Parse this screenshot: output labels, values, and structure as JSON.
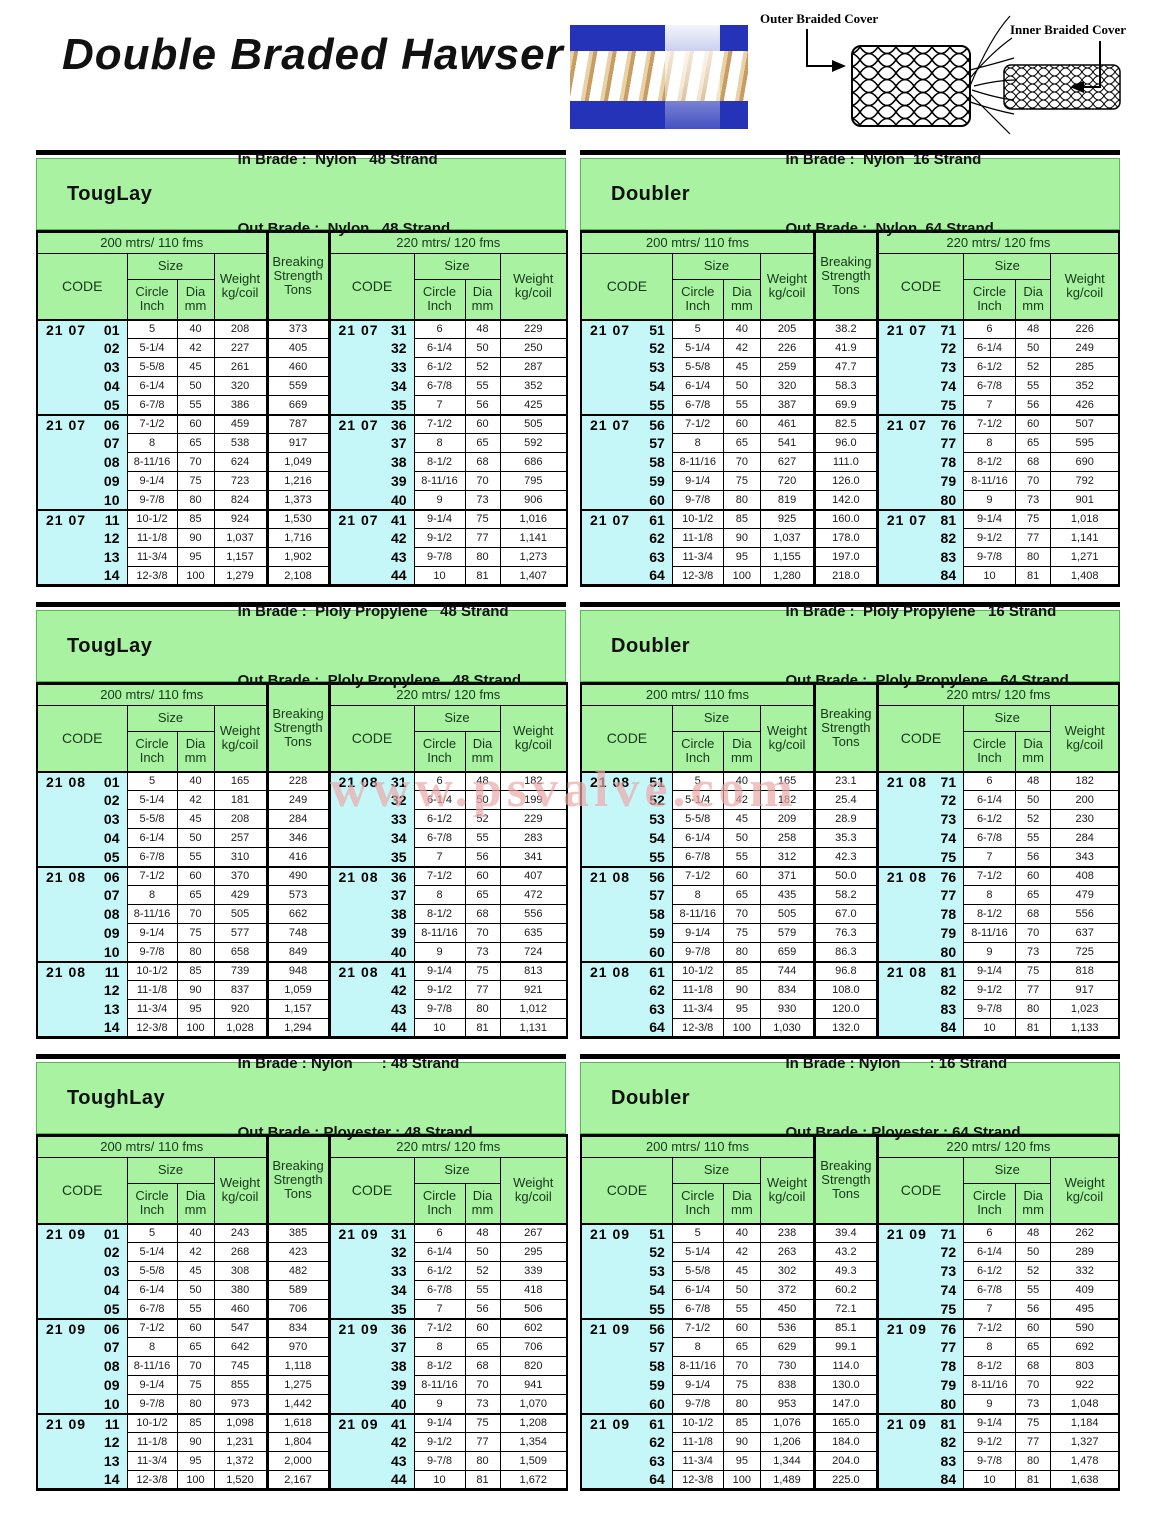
{
  "page": {
    "title": "Double Braded Hawser",
    "watermark": "www.psvalve.com",
    "outer_label": "Outer Braided Cover",
    "inner_label": "Inner Braided Cover"
  },
  "columns": {
    "len200": "200 mtrs/ 110 fms",
    "len220": "220 mtrs/ 120 fms",
    "code": "CODE",
    "size": "Size",
    "circle": "Circle\nInch",
    "dia": "Dia\nmm",
    "weight": "Weight\nkg/coil",
    "breaking": "Breaking\nStrength\nTons"
  },
  "tables": [
    {
      "product": "TougLay",
      "in_brade": "In Brade :  Nylon   48 Strand",
      "out_brade": "Out Brade :  Nylon   48 Strand",
      "rows": [
        [
          "21 07 01",
          "5",
          "40",
          "208",
          "373",
          "21 07 31",
          "6",
          "48",
          "229"
        ],
        [
          "02",
          "5-1/4",
          "42",
          "227",
          "405",
          "32",
          "6-1/4",
          "50",
          "250"
        ],
        [
          "03",
          "5-5/8",
          "45",
          "261",
          "460",
          "33",
          "6-1/2",
          "52",
          "287"
        ],
        [
          "04",
          "6-1/4",
          "50",
          "320",
          "559",
          "34",
          "6-7/8",
          "55",
          "352"
        ],
        [
          "05",
          "6-7/8",
          "55",
          "386",
          "669",
          "35",
          "7",
          "56",
          "425"
        ],
        [
          "21 07 06",
          "7-1/2",
          "60",
          "459",
          "787",
          "21 07 36",
          "7-1/2",
          "60",
          "505"
        ],
        [
          "07",
          "8",
          "65",
          "538",
          "917",
          "37",
          "8",
          "65",
          "592"
        ],
        [
          "08",
          "8-11/16",
          "70",
          "624",
          "1,049",
          "38",
          "8-1/2",
          "68",
          "686"
        ],
        [
          "09",
          "9-1/4",
          "75",
          "723",
          "1,216",
          "39",
          "8-11/16",
          "70",
          "795"
        ],
        [
          "10",
          "9-7/8",
          "80",
          "824",
          "1,373",
          "40",
          "9",
          "73",
          "906"
        ],
        [
          "21 07 11",
          "10-1/2",
          "85",
          "924",
          "1,530",
          "21 07 41",
          "9-1/4",
          "75",
          "1,016"
        ],
        [
          "12",
          "11-1/8",
          "90",
          "1,037",
          "1,716",
          "42",
          "9-1/2",
          "77",
          "1,141"
        ],
        [
          "13",
          "11-3/4",
          "95",
          "1,157",
          "1,902",
          "43",
          "9-7/8",
          "80",
          "1,273"
        ],
        [
          "14",
          "12-3/8",
          "100",
          "1,279",
          "2,108",
          "44",
          "10",
          "81",
          "1,407"
        ]
      ]
    },
    {
      "product": "Doubler",
      "in_brade": "In Brade :  Nylon  16 Strand",
      "out_brade": "Out Brade :  Nylon  64 Strand",
      "rows": [
        [
          "21 07 51",
          "5",
          "40",
          "205",
          "38.2",
          "21 07 71",
          "6",
          "48",
          "226"
        ],
        [
          "52",
          "5-1/4",
          "42",
          "226",
          "41.9",
          "72",
          "6-1/4",
          "50",
          "249"
        ],
        [
          "53",
          "5-5/8",
          "45",
          "259",
          "47.7",
          "73",
          "6-1/2",
          "52",
          "285"
        ],
        [
          "54",
          "6-1/4",
          "50",
          "320",
          "58.3",
          "74",
          "6-7/8",
          "55",
          "352"
        ],
        [
          "55",
          "6-7/8",
          "55",
          "387",
          "69.9",
          "75",
          "7",
          "56",
          "426"
        ],
        [
          "21 07 56",
          "7-1/2",
          "60",
          "461",
          "82.5",
          "21 07 76",
          "7-1/2",
          "60",
          "507"
        ],
        [
          "57",
          "8",
          "65",
          "541",
          "96.0",
          "77",
          "8",
          "65",
          "595"
        ],
        [
          "58",
          "8-11/16",
          "70",
          "627",
          "111.0",
          "78",
          "8-1/2",
          "68",
          "690"
        ],
        [
          "59",
          "9-1/4",
          "75",
          "720",
          "126.0",
          "79",
          "8-11/16",
          "70",
          "792"
        ],
        [
          "60",
          "9-7/8",
          "80",
          "819",
          "142.0",
          "80",
          "9",
          "73",
          "901"
        ],
        [
          "21 07 61",
          "10-1/2",
          "85",
          "925",
          "160.0",
          "21 07 81",
          "9-1/4",
          "75",
          "1,018"
        ],
        [
          "62",
          "11-1/8",
          "90",
          "1,037",
          "178.0",
          "82",
          "9-1/2",
          "77",
          "1,141"
        ],
        [
          "63",
          "11-3/4",
          "95",
          "1,155",
          "197.0",
          "83",
          "9-7/8",
          "80",
          "1,271"
        ],
        [
          "64",
          "12-3/8",
          "100",
          "1,280",
          "218.0",
          "84",
          "10",
          "81",
          "1,408"
        ]
      ]
    },
    {
      "product": "TougLay",
      "in_brade": "In Brade :  Ploly Propylene   48 Strand",
      "out_brade": "Out Brade :  Ploly Propylene   48 Strand",
      "rows": [
        [
          "21 08 01",
          "5",
          "40",
          "165",
          "228",
          "21 08 31",
          "6",
          "48",
          "182"
        ],
        [
          "02",
          "5-1/4",
          "42",
          "181",
          "249",
          "32",
          "6-1/4",
          "50",
          "199"
        ],
        [
          "03",
          "5-5/8",
          "45",
          "208",
          "284",
          "33",
          "6-1/2",
          "52",
          "229"
        ],
        [
          "04",
          "6-1/4",
          "50",
          "257",
          "346",
          "34",
          "6-7/8",
          "55",
          "283"
        ],
        [
          "05",
          "6-7/8",
          "55",
          "310",
          "416",
          "35",
          "7",
          "56",
          "341"
        ],
        [
          "21 08 06",
          "7-1/2",
          "60",
          "370",
          "490",
          "21 08 36",
          "7-1/2",
          "60",
          "407"
        ],
        [
          "07",
          "8",
          "65",
          "429",
          "573",
          "37",
          "8",
          "65",
          "472"
        ],
        [
          "08",
          "8-11/16",
          "70",
          "505",
          "662",
          "38",
          "8-1/2",
          "68",
          "556"
        ],
        [
          "09",
          "9-1/4",
          "75",
          "577",
          "748",
          "39",
          "8-11/16",
          "70",
          "635"
        ],
        [
          "10",
          "9-7/8",
          "80",
          "658",
          "849",
          "40",
          "9",
          "73",
          "724"
        ],
        [
          "21 08 11",
          "10-1/2",
          "85",
          "739",
          "948",
          "21 08 41",
          "9-1/4",
          "75",
          "813"
        ],
        [
          "12",
          "11-1/8",
          "90",
          "837",
          "1,059",
          "42",
          "9-1/2",
          "77",
          "921"
        ],
        [
          "13",
          "11-3/4",
          "95",
          "920",
          "1,157",
          "43",
          "9-7/8",
          "80",
          "1,012"
        ],
        [
          "14",
          "12-3/8",
          "100",
          "1,028",
          "1,294",
          "44",
          "10",
          "81",
          "1,131"
        ]
      ]
    },
    {
      "product": "Doubler",
      "in_brade": "In Brade :  Ploly Propylene   16 Strand",
      "out_brade": "Out Brade :  Ploly Propylene   64 Strand",
      "rows": [
        [
          "21 08 51",
          "5",
          "40",
          "165",
          "23.1",
          "21 08 71",
          "6",
          "48",
          "182"
        ],
        [
          "52",
          "5-1/4",
          "42",
          "182",
          "25.4",
          "72",
          "6-1/4",
          "50",
          "200"
        ],
        [
          "53",
          "5-5/8",
          "45",
          "209",
          "28.9",
          "73",
          "6-1/2",
          "52",
          "230"
        ],
        [
          "54",
          "6-1/4",
          "50",
          "258",
          "35.3",
          "74",
          "6-7/8",
          "55",
          "284"
        ],
        [
          "55",
          "6-7/8",
          "55",
          "312",
          "42.3",
          "75",
          "7",
          "56",
          "343"
        ],
        [
          "21 08 56",
          "7-1/2",
          "60",
          "371",
          "50.0",
          "21 08 76",
          "7-1/2",
          "60",
          "408"
        ],
        [
          "57",
          "8",
          "65",
          "435",
          "58.2",
          "77",
          "8",
          "65",
          "479"
        ],
        [
          "58",
          "8-11/16",
          "70",
          "505",
          "67.0",
          "78",
          "8-1/2",
          "68",
          "556"
        ],
        [
          "59",
          "9-1/4",
          "75",
          "579",
          "76.3",
          "79",
          "8-11/16",
          "70",
          "637"
        ],
        [
          "60",
          "9-7/8",
          "80",
          "659",
          "86.3",
          "80",
          "9",
          "73",
          "725"
        ],
        [
          "21 08 61",
          "10-1/2",
          "85",
          "744",
          "96.8",
          "21 08 81",
          "9-1/4",
          "75",
          "818"
        ],
        [
          "62",
          "11-1/8",
          "90",
          "834",
          "108.0",
          "82",
          "9-1/2",
          "77",
          "917"
        ],
        [
          "63",
          "11-3/4",
          "95",
          "930",
          "120.0",
          "83",
          "9-7/8",
          "80",
          "1,023"
        ],
        [
          "64",
          "12-3/8",
          "100",
          "1,030",
          "132.0",
          "84",
          "10",
          "81",
          "1,133"
        ]
      ]
    },
    {
      "product": "ToughLay",
      "in_brade": "In Brade : Nylon       : 48 Strand",
      "out_brade": "Out Brade : Ployester : 48 Strand",
      "rows": [
        [
          "21 09 01",
          "5",
          "40",
          "243",
          "385",
          "21 09 31",
          "6",
          "48",
          "267"
        ],
        [
          "02",
          "5-1/4",
          "42",
          "268",
          "423",
          "32",
          "6-1/4",
          "50",
          "295"
        ],
        [
          "03",
          "5-5/8",
          "45",
          "308",
          "482",
          "33",
          "6-1/2",
          "52",
          "339"
        ],
        [
          "04",
          "6-1/4",
          "50",
          "380",
          "589",
          "34",
          "6-7/8",
          "55",
          "418"
        ],
        [
          "05",
          "6-7/8",
          "55",
          "460",
          "706",
          "35",
          "7",
          "56",
          "506"
        ],
        [
          "21 09 06",
          "7-1/2",
          "60",
          "547",
          "834",
          "21 09 36",
          "7-1/2",
          "60",
          "602"
        ],
        [
          "07",
          "8",
          "65",
          "642",
          "970",
          "37",
          "8",
          "65",
          "706"
        ],
        [
          "08",
          "8-11/16",
          "70",
          "745",
          "1,118",
          "38",
          "8-1/2",
          "68",
          "820"
        ],
        [
          "09",
          "9-1/4",
          "75",
          "855",
          "1,275",
          "39",
          "8-11/16",
          "70",
          "941"
        ],
        [
          "10",
          "9-7/8",
          "80",
          "973",
          "1,442",
          "40",
          "9",
          "73",
          "1,070"
        ],
        [
          "21 09 11",
          "10-1/2",
          "85",
          "1,098",
          "1,618",
          "21 09 41",
          "9-1/4",
          "75",
          "1,208"
        ],
        [
          "12",
          "11-1/8",
          "90",
          "1,231",
          "1,804",
          "42",
          "9-1/2",
          "77",
          "1,354"
        ],
        [
          "13",
          "11-3/4",
          "95",
          "1,372",
          "2,000",
          "43",
          "9-7/8",
          "80",
          "1,509"
        ],
        [
          "14",
          "12-3/8",
          "100",
          "1,520",
          "2,167",
          "44",
          "10",
          "81",
          "1,672"
        ]
      ]
    },
    {
      "product": "Doubler",
      "in_brade": "In Brade : Nylon       : 16 Strand",
      "out_brade": "Out Brade : Ployester : 64 Strand",
      "rows": [
        [
          "21 09 51",
          "5",
          "40",
          "238",
          "39.4",
          "21 09 71",
          "6",
          "48",
          "262"
        ],
        [
          "52",
          "5-1/4",
          "42",
          "263",
          "43.2",
          "72",
          "6-1/4",
          "50",
          "289"
        ],
        [
          "53",
          "5-5/8",
          "45",
          "302",
          "49.3",
          "73",
          "6-1/2",
          "52",
          "332"
        ],
        [
          "54",
          "6-1/4",
          "50",
          "372",
          "60.2",
          "74",
          "6-7/8",
          "55",
          "409"
        ],
        [
          "55",
          "6-7/8",
          "55",
          "450",
          "72.1",
          "75",
          "7",
          "56",
          "495"
        ],
        [
          "21 09 56",
          "7-1/2",
          "60",
          "536",
          "85.1",
          "21 09 76",
          "7-1/2",
          "60",
          "590"
        ],
        [
          "57",
          "8",
          "65",
          "629",
          "99.1",
          "77",
          "8",
          "65",
          "692"
        ],
        [
          "58",
          "8-11/16",
          "70",
          "730",
          "114.0",
          "78",
          "8-1/2",
          "68",
          "803"
        ],
        [
          "59",
          "9-1/4",
          "75",
          "838",
          "130.0",
          "79",
          "8-11/16",
          "70",
          "922"
        ],
        [
          "60",
          "9-7/8",
          "80",
          "953",
          "147.0",
          "80",
          "9",
          "73",
          "1,048"
        ],
        [
          "21 09 61",
          "10-1/2",
          "85",
          "1,076",
          "165.0",
          "21 09 81",
          "9-1/4",
          "75",
          "1,184"
        ],
        [
          "62",
          "11-1/8",
          "90",
          "1,206",
          "184.0",
          "82",
          "9-1/2",
          "77",
          "1,327"
        ],
        [
          "63",
          "11-3/4",
          "95",
          "1,344",
          "204.0",
          "83",
          "9-7/8",
          "80",
          "1,478"
        ],
        [
          "64",
          "12-3/8",
          "100",
          "1,489",
          "225.0",
          "84",
          "10",
          "81",
          "1,638"
        ]
      ]
    }
  ]
}
